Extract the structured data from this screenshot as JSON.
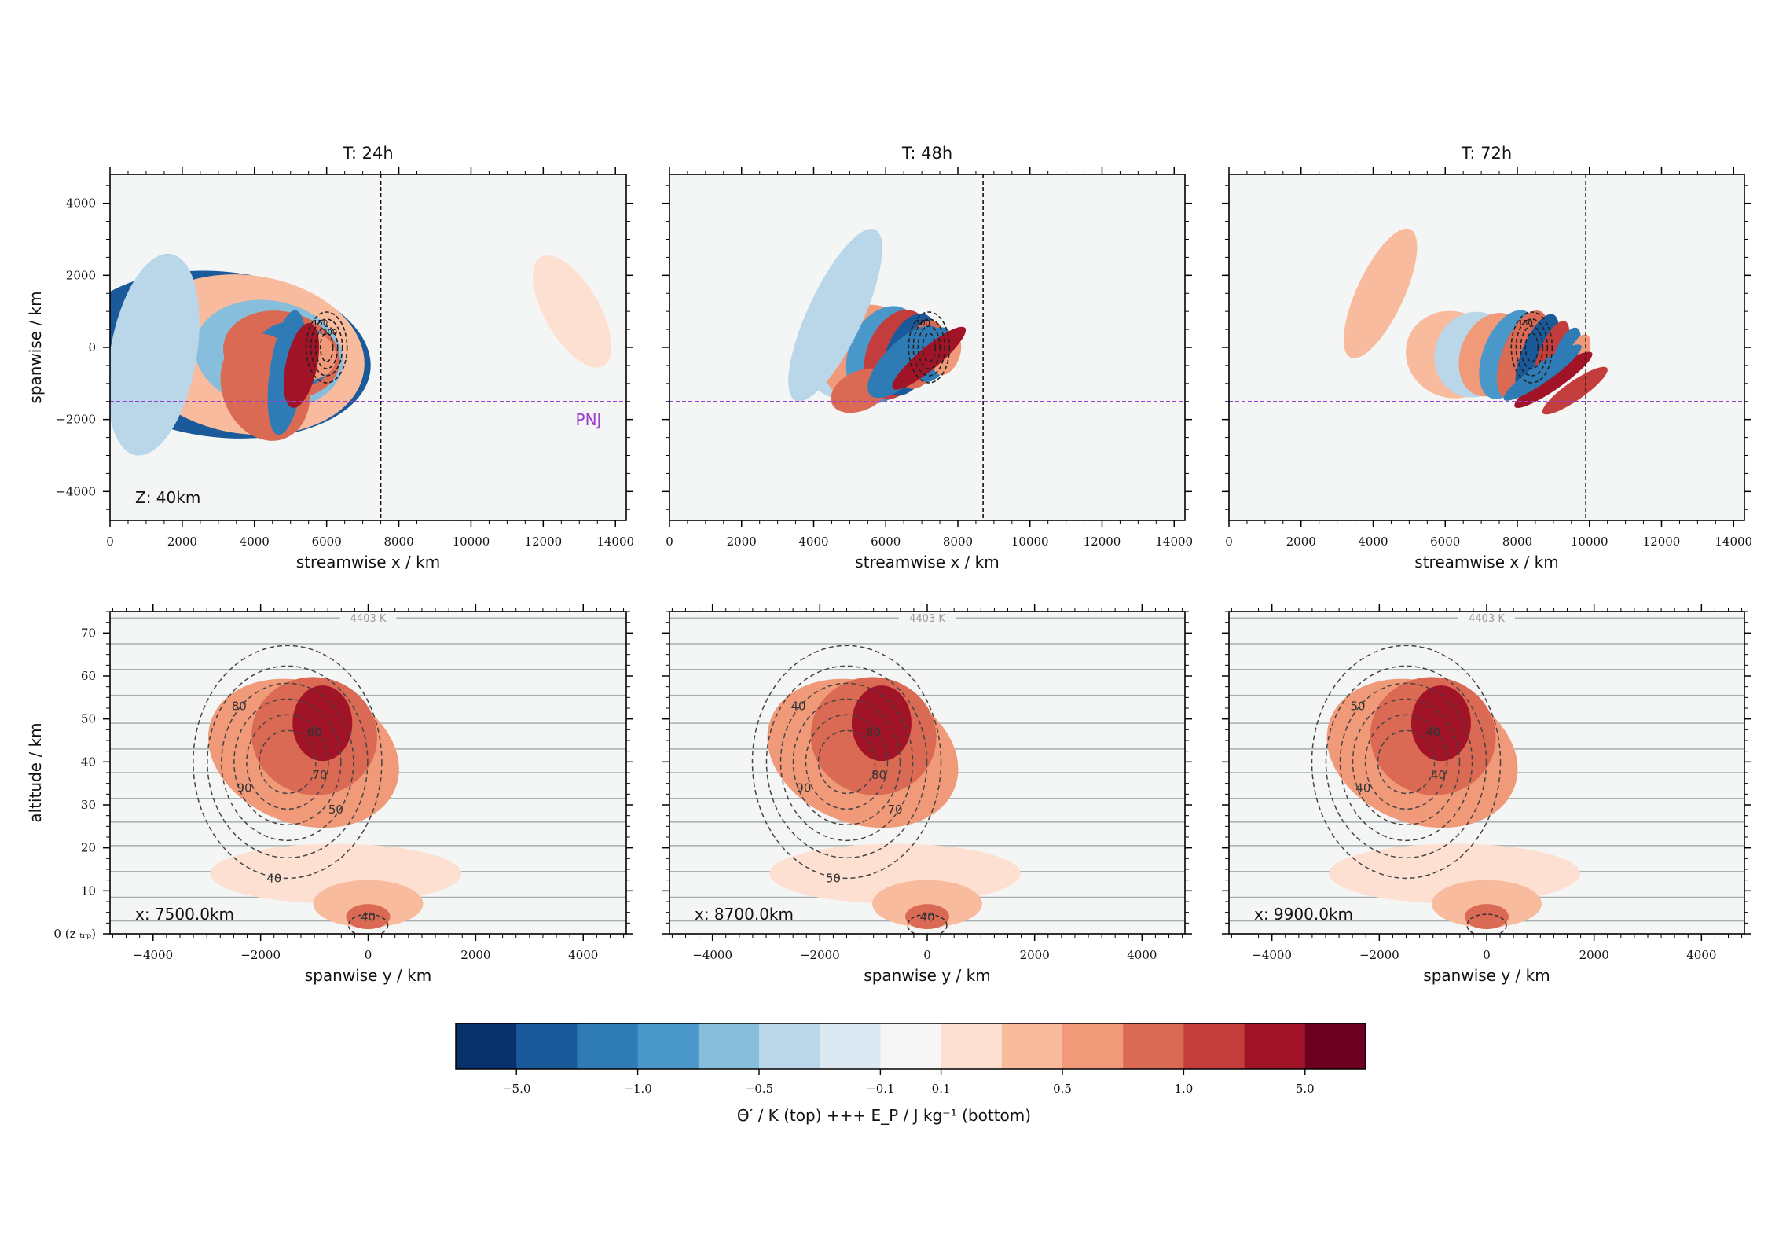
{
  "figure": {
    "colorbar_label": "Θ′ / K (top) +++ E_P / J kg⁻¹ (bottom)",
    "colorbar_colors": [
      "#08306b",
      "#1a5a9a",
      "#2f7bb6",
      "#4a98c9",
      "#87bedc",
      "#b9d7e9",
      "#dde9f2",
      "#f6f6f6",
      "#fde0d2",
      "#f8bb9d",
      "#f09a7a",
      "#db6a54",
      "#c33d3d",
      "#a11427",
      "#6d0020"
    ],
    "colorbar_ticks": [
      "−5.0",
      "−1.0",
      "−0.5",
      "−0.1",
      "0.1",
      "0.5",
      "1.0",
      "5.0"
    ],
    "pnj_label": "PNJ",
    "theta_label": "4403 K"
  },
  "chart_data": [
    {
      "type": "heatmap",
      "panel": "top-1",
      "title": "T: 24h",
      "xlabel": "streamwise x / km",
      "ylabel": "spanwise / km",
      "xlim": [
        0,
        14300
      ],
      "ylim": [
        -4800,
        4800
      ],
      "xticks": [
        "0",
        "2000",
        "4000",
        "6000",
        "8000",
        "10000",
        "12000",
        "14000"
      ],
      "yticks": [
        "4000",
        "2000",
        "0",
        "−2000",
        "−4000"
      ],
      "annotation": "Z: 40km",
      "cross_section_x": 7500,
      "pnj_y": -1500,
      "contour_labels": [
        "150",
        "300"
      ],
      "grid": false
    },
    {
      "type": "heatmap",
      "panel": "top-2",
      "title": "T: 48h",
      "xlabel": "streamwise x / km",
      "ylabel": "",
      "xlim": [
        0,
        14300
      ],
      "ylim": [
        -4800,
        4800
      ],
      "xticks": [
        "0",
        "2000",
        "4000",
        "6000",
        "8000",
        "10000",
        "12000",
        "14000"
      ],
      "yticks": [],
      "annotation": "",
      "cross_section_x": 8700,
      "pnj_y": -1500,
      "contour_labels": [
        "300"
      ],
      "grid": false
    },
    {
      "type": "heatmap",
      "panel": "top-3",
      "title": "T: 72h",
      "xlabel": "streamwise x / km",
      "ylabel": "",
      "xlim": [
        0,
        14300
      ],
      "ylim": [
        -4800,
        4800
      ],
      "xticks": [
        "0",
        "2000",
        "4000",
        "6000",
        "8000",
        "10000",
        "12000",
        "14000"
      ],
      "yticks": [],
      "annotation": "",
      "cross_section_x": 9900,
      "pnj_y": -1500,
      "contour_labels": [
        "150"
      ],
      "grid": false
    },
    {
      "type": "heatmap",
      "panel": "bottom-1",
      "title": "",
      "xlabel": "spanwise y / km",
      "ylabel": "altitude / km",
      "xlim": [
        -4800,
        4800
      ],
      "ylim": [
        0,
        75
      ],
      "xticks": [
        "−4000",
        "−2000",
        "0",
        "2000",
        "4000"
      ],
      "yticks": [
        "70",
        "60",
        "50",
        "40",
        "30",
        "20",
        "10",
        "0 (z_trp)"
      ],
      "annotation": "x: 7500.0km",
      "contour_labels": [
        "80",
        "60",
        "90",
        "70",
        "50",
        "40",
        "40"
      ],
      "isentrope_altitudes": [
        3,
        8.5,
        14.5,
        20.5,
        26,
        31.5,
        37.5,
        43,
        49,
        55.5,
        61.5,
        67.5,
        73.5
      ]
    },
    {
      "type": "heatmap",
      "panel": "bottom-2",
      "title": "",
      "xlabel": "spanwise y / km",
      "ylabel": "",
      "xlim": [
        -4800,
        4800
      ],
      "ylim": [
        0,
        75
      ],
      "xticks": [
        "−4000",
        "−2000",
        "0",
        "2000",
        "4000"
      ],
      "yticks": [],
      "annotation": "x: 8700.0km",
      "contour_labels": [
        "40",
        "60",
        "90",
        "80",
        "70",
        "50",
        "40"
      ],
      "isentrope_altitudes": [
        3,
        8.5,
        14.5,
        20.5,
        26,
        31.5,
        37.5,
        43,
        49,
        55.5,
        61.5,
        67.5,
        73.5
      ]
    },
    {
      "type": "heatmap",
      "panel": "bottom-3",
      "title": "",
      "xlabel": "spanwise y / km",
      "ylabel": "",
      "xlim": [
        -4800,
        4800
      ],
      "ylim": [
        0,
        75
      ],
      "xticks": [
        "−4000",
        "−2000",
        "0",
        "2000",
        "4000"
      ],
      "yticks": [],
      "annotation": "x: 9900.0km",
      "contour_labels": [
        "50",
        "40",
        "40",
        "40"
      ],
      "isentrope_altitudes": [
        3,
        8.5,
        14.5,
        20.5,
        26,
        31.5,
        37.5,
        43,
        49,
        55.5,
        61.5,
        67.5,
        73.5
      ]
    }
  ]
}
